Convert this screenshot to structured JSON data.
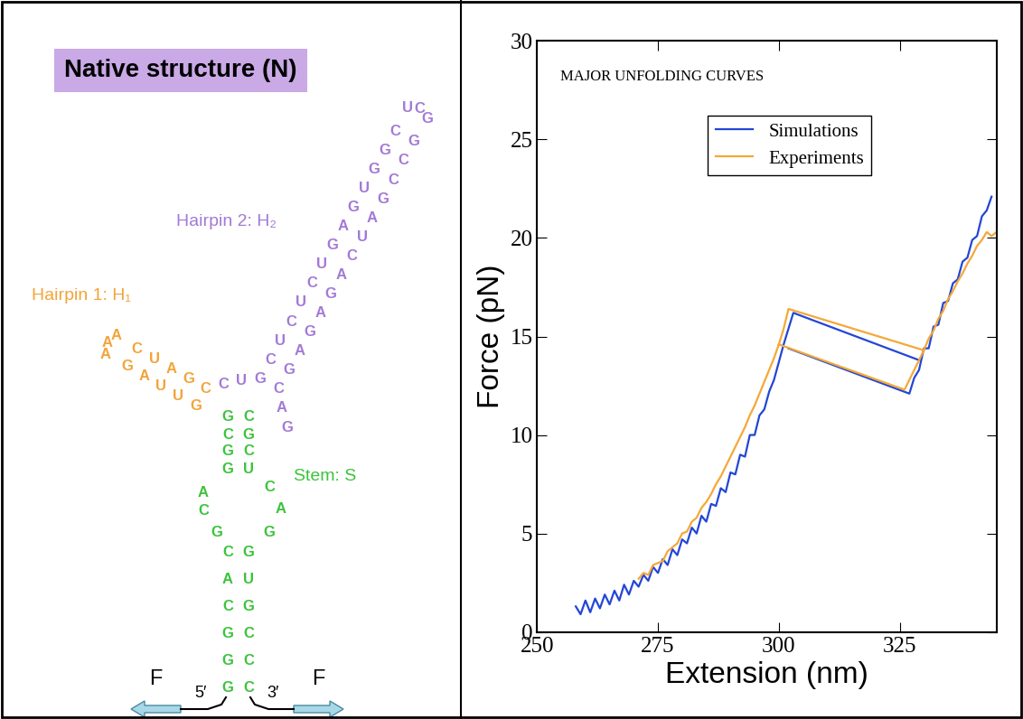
{
  "diagram": {
    "title": "Native structure (N)",
    "stem": {
      "label": "Stem: S",
      "color": "#3cc33c",
      "pairs_top": [
        [
          "G",
          "C"
        ],
        [
          "C",
          "G"
        ],
        [
          "G",
          "C"
        ],
        [
          "G",
          "U"
        ]
      ],
      "loop_left": [
        "A",
        "C",
        "G"
      ],
      "loop_right": [
        "C",
        "A",
        "G"
      ],
      "pairs_bottom": [
        [
          "C",
          "G"
        ],
        [
          "A",
          "U"
        ],
        [
          "C",
          "G"
        ],
        [
          "G",
          "C"
        ],
        [
          "G",
          "C"
        ],
        [
          "G",
          "C"
        ]
      ],
      "end_5": "5′",
      "end_3": "3′",
      "force_left": "F",
      "force_right": "F"
    },
    "hairpin_1": {
      "label": "Hairpin 1: H₁",
      "color": "#f2a43a",
      "pairs": [
        [
          "G",
          "C"
        ],
        [
          "U",
          "G"
        ],
        [
          "U",
          "A"
        ],
        [
          "A",
          "U"
        ],
        [
          "G",
          "C"
        ]
      ],
      "loop": [
        "A",
        "A",
        "A"
      ]
    },
    "hairpin_2": {
      "label": "Hairpin 2: H₂",
      "color": "#a37ad6",
      "pairs": [
        [
          "G",
          "C"
        ],
        [
          "C",
          "G"
        ],
        [
          "U",
          "A"
        ],
        [
          "C",
          "G"
        ],
        [
          "U",
          "A"
        ],
        [
          "C",
          "G"
        ],
        [
          "U",
          "A"
        ],
        [
          "G",
          "C"
        ],
        [
          "A",
          "U"
        ],
        [
          "G",
          "A"
        ],
        [
          "U",
          "G"
        ],
        [
          "G",
          "C"
        ],
        [
          "G",
          "C"
        ],
        [
          "C",
          "G"
        ]
      ],
      "loop": [
        "U",
        "C",
        "G"
      ],
      "linker": [
        "C",
        "U"
      ],
      "tail": [
        "A",
        "G"
      ]
    }
  },
  "chart_data": {
    "type": "line",
    "title": "MAJOR UNFOLDING CURVES",
    "x_label": "Extension (nm)",
    "y_label": "Force (pN)",
    "xlim": [
      250,
      345
    ],
    "xticks": [
      250,
      275,
      300,
      325
    ],
    "ylim": [
      0,
      30
    ],
    "yticks": [
      0,
      5,
      10,
      15,
      20,
      25,
      30
    ],
    "legend": "upper center",
    "series": [
      {
        "name": "Simulations",
        "color": "#2346d6",
        "x": [
          258,
          259,
          260,
          261,
          262,
          263,
          264,
          265,
          266,
          267,
          268,
          269,
          270,
          271,
          272,
          273,
          274,
          275,
          276,
          277,
          278,
          279,
          280,
          281,
          282,
          283,
          284,
          285,
          286,
          287,
          288,
          289,
          290,
          291,
          292,
          293,
          294,
          295,
          296,
          297,
          298,
          299,
          300,
          301,
          302,
          303,
          329,
          302,
          302,
          327,
          328,
          329,
          330,
          331,
          332,
          333,
          334,
          335,
          336,
          337,
          338,
          339,
          340,
          341,
          342,
          343,
          344
        ],
        "values": [
          1.3,
          0.9,
          1.6,
          1.0,
          1.7,
          1.2,
          1.9,
          1.4,
          2.1,
          1.6,
          2.4,
          1.9,
          2.6,
          2.3,
          2.9,
          2.6,
          3.3,
          3.0,
          3.7,
          3.4,
          4.2,
          3.9,
          4.7,
          4.5,
          5.3,
          5.0,
          5.9,
          5.6,
          6.5,
          6.4,
          7.3,
          7.1,
          8.1,
          8.0,
          9.0,
          8.9,
          10.0,
          10.0,
          11.0,
          11.3,
          12.2,
          12.8,
          13.7,
          14.6,
          15.4,
          16.2,
          13.8,
          null,
          14.4,
          12.1,
          12.9,
          13.3,
          14.4,
          14.4,
          15.5,
          15.6,
          16.7,
          16.8,
          17.7,
          17.9,
          18.8,
          19.0,
          19.9,
          20.1,
          21.1,
          21.4,
          22.1
        ]
      },
      {
        "name": "Experiments",
        "color": "#f4a838",
        "x": [
          271,
          272,
          273,
          274,
          275,
          276,
          277,
          278,
          279,
          280,
          281,
          282,
          283,
          284,
          285,
          286,
          287,
          288,
          289,
          290,
          291,
          292,
          293,
          294,
          295,
          296,
          297,
          298,
          299,
          300,
          301,
          302,
          330,
          300,
          300,
          326,
          327,
          328,
          329,
          330,
          331,
          332,
          333,
          334,
          335,
          336,
          337,
          338,
          339,
          340,
          341,
          342,
          343,
          344,
          345
        ],
        "values": [
          2.7,
          3.0,
          2.9,
          3.4,
          3.5,
          3.6,
          4.1,
          4.3,
          4.5,
          5.0,
          5.1,
          5.6,
          5.8,
          6.3,
          6.6,
          7.0,
          7.5,
          7.9,
          8.4,
          8.9,
          9.4,
          9.9,
          10.4,
          11.0,
          11.5,
          12.1,
          12.7,
          13.3,
          13.9,
          14.6,
          15.4,
          16.4,
          14.3,
          null,
          14.6,
          12.3,
          12.8,
          13.3,
          13.8,
          14.3,
          14.9,
          15.3,
          15.9,
          16.3,
          16.9,
          17.3,
          17.8,
          18.2,
          18.7,
          19.1,
          19.6,
          19.9,
          20.3,
          20.1,
          20.3
        ]
      }
    ]
  }
}
